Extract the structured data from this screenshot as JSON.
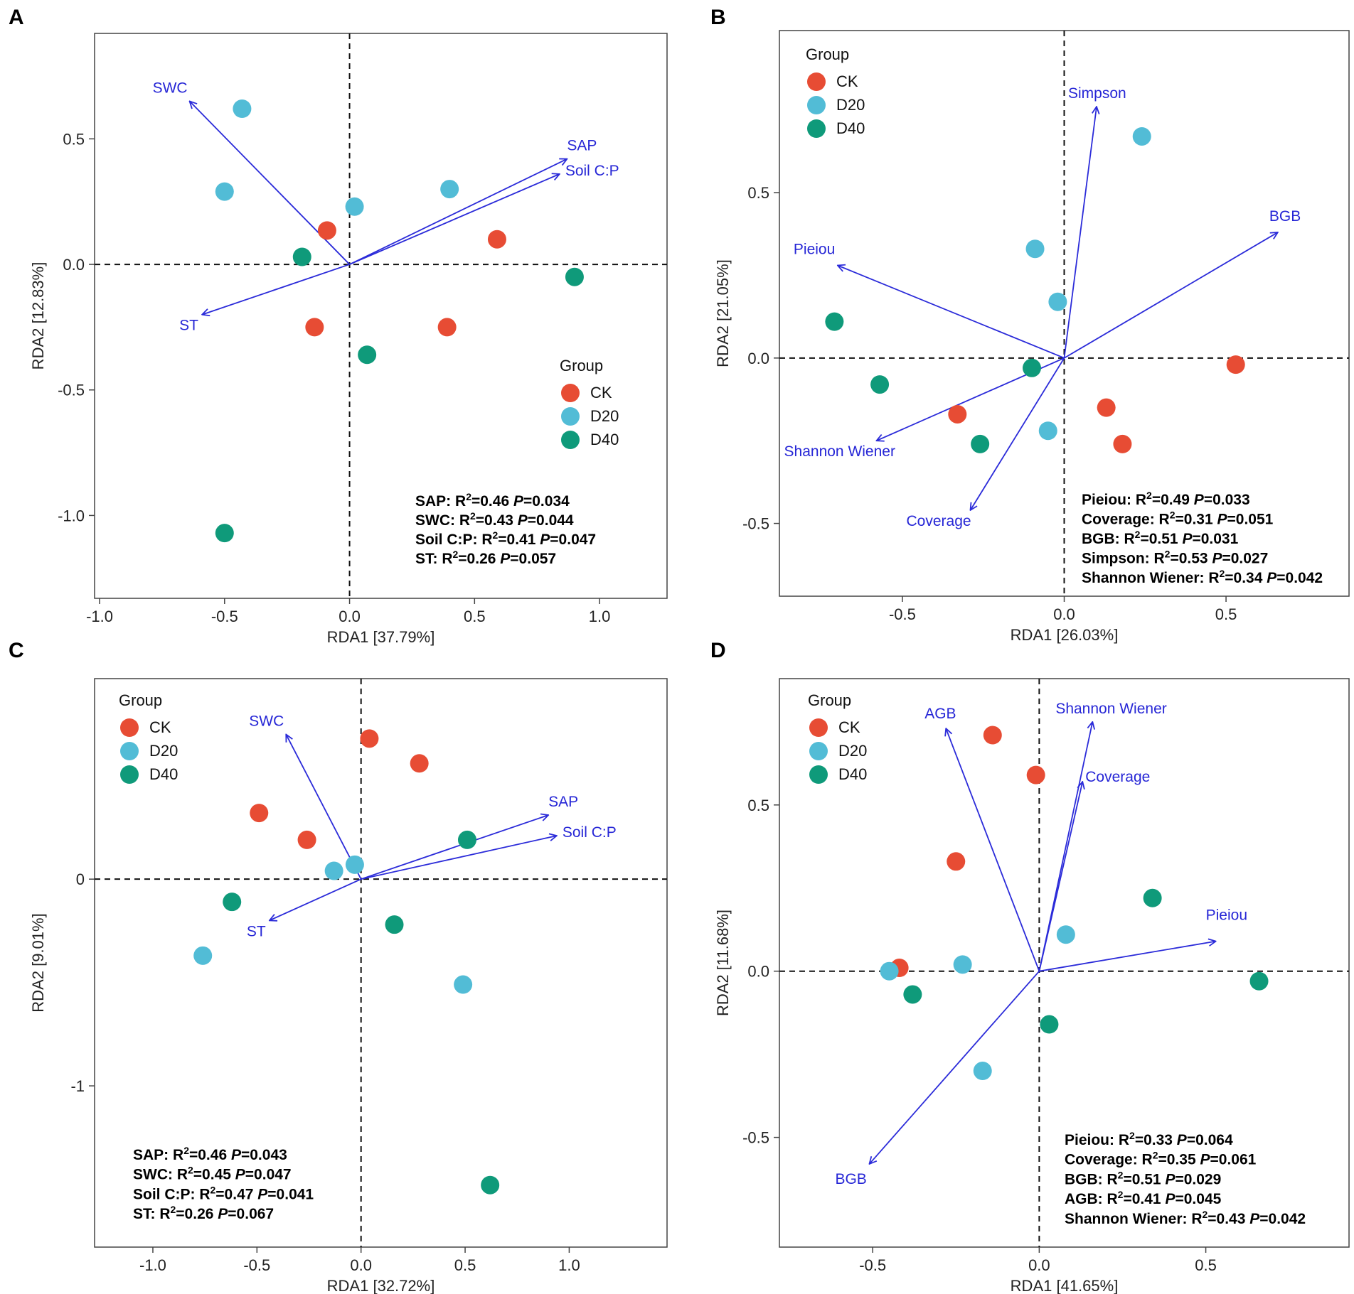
{
  "colors": {
    "CK": "#e74c34",
    "D20": "#52bcd6",
    "D40": "#0f9a7a",
    "arrow": "#2b2bd9",
    "axis": "#444444"
  },
  "legend_title": "Group",
  "chart_data": [
    {
      "panel": "A",
      "type": "scatter",
      "xlabel": "RDA1 [37.79%]",
      "ylabel": "RDA2 [12.83%]",
      "xlim": [
        -1.02,
        1.27
      ],
      "ylim": [
        -1.33,
        0.92
      ],
      "xticks": [
        -1.0,
        -0.5,
        0.0,
        0.5,
        1.0
      ],
      "xtick_labels": [
        "-1.0",
        "-0.5",
        "0.0",
        "0.5",
        "1.0"
      ],
      "yticks": [
        -1.0,
        -0.5,
        0.0,
        0.5
      ],
      "ytick_labels": [
        "-1.0",
        "-0.5",
        "0.0",
        "0.5"
      ],
      "legend_pos": "middle-right",
      "stats_pos": "bottom-right",
      "series": [
        {
          "name": "CK",
          "points": [
            [
              -0.09,
              0.135
            ],
            [
              0.59,
              0.1
            ],
            [
              -0.14,
              -0.25
            ],
            [
              0.39,
              -0.25
            ]
          ]
        },
        {
          "name": "D20",
          "points": [
            [
              -0.43,
              0.62
            ],
            [
              -0.5,
              0.29
            ],
            [
              0.02,
              0.23
            ],
            [
              0.4,
              0.3
            ]
          ]
        },
        {
          "name": "D40",
          "points": [
            [
              -0.19,
              0.03
            ],
            [
              0.9,
              -0.05
            ],
            [
              0.07,
              -0.36
            ],
            [
              -0.5,
              -1.07
            ]
          ]
        }
      ],
      "vectors": [
        {
          "label": "SWC",
          "x": -0.64,
          "y": 0.65
        },
        {
          "label": "SAP",
          "x": 0.87,
          "y": 0.42
        },
        {
          "label": "Soil C:P",
          "x": 0.84,
          "y": 0.36
        },
        {
          "label": "ST",
          "x": -0.59,
          "y": -0.2
        }
      ],
      "stats": [
        {
          "name": "SAP",
          "r2": "=0.46",
          "p": "=0.034"
        },
        {
          "name": "SWC",
          "r2": "=0.43",
          "p": "=0.044"
        },
        {
          "name": "Soil C:P",
          "r2": "=0.41",
          "p": "=0.047"
        },
        {
          "name": "ST",
          "r2": "=0.26",
          "p": "=0.057"
        }
      ]
    },
    {
      "panel": "B",
      "type": "scatter",
      "xlabel": "RDA1 [26.03%]",
      "ylabel": "RDA2 [21.05%]",
      "xlim": [
        -0.88,
        0.88
      ],
      "ylim": [
        -0.72,
        0.99
      ],
      "xticks": [
        -0.5,
        0.0,
        0.5
      ],
      "xtick_labels": [
        "-0.5",
        "0.0",
        "0.5"
      ],
      "yticks": [
        -0.5,
        0.0,
        0.5
      ],
      "ytick_labels": [
        "-0.5",
        "0.0",
        "0.5"
      ],
      "legend_pos": "top-left",
      "stats_pos": "bottom-right",
      "series": [
        {
          "name": "CK",
          "points": [
            [
              0.53,
              -0.02
            ],
            [
              0.13,
              -0.15
            ],
            [
              0.18,
              -0.26
            ],
            [
              -0.33,
              -0.17
            ]
          ]
        },
        {
          "name": "D20",
          "points": [
            [
              0.24,
              0.67
            ],
            [
              -0.09,
              0.33
            ],
            [
              -0.02,
              0.17
            ],
            [
              -0.05,
              -0.22
            ]
          ]
        },
        {
          "name": "D40",
          "points": [
            [
              -0.71,
              0.11
            ],
            [
              -0.57,
              -0.08
            ],
            [
              -0.26,
              -0.26
            ],
            [
              -0.1,
              -0.03
            ]
          ]
        }
      ],
      "vectors": [
        {
          "label": "Simpson",
          "x": 0.1,
          "y": 0.76
        },
        {
          "label": "BGB",
          "x": 0.66,
          "y": 0.38
        },
        {
          "label": "Pieiou",
          "x": -0.7,
          "y": 0.28
        },
        {
          "label": "Shannon Wiener",
          "x": -0.58,
          "y": -0.25
        },
        {
          "label": "Coverage",
          "x": -0.29,
          "y": -0.46
        }
      ],
      "stats": [
        {
          "name": "Pieiou",
          "r2": "=0.49",
          "p": "=0.033"
        },
        {
          "name": "Coverage",
          "r2": "=0.31",
          "p": "=0.051"
        },
        {
          "name": "BGB",
          "r2": "=0.51",
          "p": "=0.031"
        },
        {
          "name": "Simpson",
          "r2": "=0.53",
          "p": "=0.027"
        },
        {
          "name": "Shannon Wiener",
          "r2": "=0.34",
          "p": "=0.042"
        }
      ]
    },
    {
      "panel": "C",
      "type": "scatter",
      "xlabel": "RDA1 [32.72%]",
      "ylabel": "RDA2 [9.01%]",
      "xlim": [
        -1.28,
        1.47
      ],
      "ylim": [
        -1.78,
        0.97
      ],
      "xticks": [
        -1.0,
        -0.5,
        0.0,
        0.5,
        1.0
      ],
      "xtick_labels": [
        "-1.0",
        "-0.5",
        "0.0",
        "0.5",
        "1.0"
      ],
      "yticks": [
        -1,
        0
      ],
      "ytick_labels": [
        "-1",
        "0"
      ],
      "legend_pos": "top-left",
      "stats_pos": "bottom-left",
      "series": [
        {
          "name": "CK",
          "points": [
            [
              0.04,
              0.68
            ],
            [
              0.28,
              0.56
            ],
            [
              -0.49,
              0.32
            ],
            [
              -0.26,
              0.19
            ]
          ]
        },
        {
          "name": "D20",
          "points": [
            [
              -0.13,
              0.04
            ],
            [
              -0.03,
              0.07
            ],
            [
              -0.76,
              -0.37
            ],
            [
              0.49,
              -0.51
            ]
          ]
        },
        {
          "name": "D40",
          "points": [
            [
              0.51,
              0.19
            ],
            [
              -0.62,
              -0.11
            ],
            [
              0.16,
              -0.22
            ],
            [
              0.62,
              -1.48
            ]
          ]
        }
      ],
      "vectors": [
        {
          "label": "SWC",
          "x": -0.36,
          "y": 0.7
        },
        {
          "label": "SAP",
          "x": 0.9,
          "y": 0.31
        },
        {
          "label": "Soil C:P",
          "x": 0.94,
          "y": 0.21
        },
        {
          "label": "ST",
          "x": -0.44,
          "y": -0.2
        }
      ],
      "stats": [
        {
          "name": "SAP",
          "r2": "=0.46",
          "p": "=0.043"
        },
        {
          "name": "SWC",
          "r2": "=0.45",
          "p": "=0.047"
        },
        {
          "name": "Soil C:P",
          "r2": "=0.47",
          "p": "=0.041"
        },
        {
          "name": "ST",
          "r2": "=0.26",
          "p": "=0.067"
        }
      ]
    },
    {
      "panel": "D",
      "type": "scatter",
      "xlabel": "RDA1 [41.65%]",
      "ylabel": "RDA2 [11.68%]",
      "xlim": [
        -0.78,
        0.93
      ],
      "ylim": [
        -0.83,
        0.88
      ],
      "xticks": [
        -0.5,
        0.0,
        0.5
      ],
      "xtick_labels": [
        "-0.5",
        "0.0",
        "0.5"
      ],
      "yticks": [
        -0.5,
        0.0,
        0.5
      ],
      "ytick_labels": [
        "-0.5",
        "0.0",
        "0.5"
      ],
      "legend_pos": "top-left",
      "stats_pos": "bottom-right",
      "series": [
        {
          "name": "CK",
          "points": [
            [
              -0.14,
              0.71
            ],
            [
              -0.01,
              0.59
            ],
            [
              -0.25,
              0.33
            ],
            [
              -0.42,
              0.01
            ]
          ]
        },
        {
          "name": "D20",
          "points": [
            [
              0.08,
              0.11
            ],
            [
              -0.23,
              0.02
            ],
            [
              -0.45,
              0.0
            ],
            [
              -0.17,
              -0.3
            ]
          ]
        },
        {
          "name": "D40",
          "points": [
            [
              0.34,
              0.22
            ],
            [
              0.66,
              -0.03
            ],
            [
              -0.38,
              -0.07
            ],
            [
              0.03,
              -0.16
            ]
          ]
        }
      ],
      "vectors": [
        {
          "label": "AGB",
          "x": -0.28,
          "y": 0.73
        },
        {
          "label": "Shannon Wiener",
          "x": 0.16,
          "y": 0.75
        },
        {
          "label": "Coverage",
          "x": 0.13,
          "y": 0.57
        },
        {
          "label": "Pieiou",
          "x": 0.53,
          "y": 0.09
        },
        {
          "label": "BGB",
          "x": -0.51,
          "y": -0.58
        }
      ],
      "stats": [
        {
          "name": "Pieiou",
          "r2": "=0.33",
          "p": "=0.064"
        },
        {
          "name": "Coverage",
          "r2": "=0.35",
          "p": "=0.061"
        },
        {
          "name": "BGB",
          "r2": "=0.51",
          "p": "=0.029"
        },
        {
          "name": "AGB",
          "r2": "=0.41",
          "p": "=0.045"
        },
        {
          "name": "Shannon Wiener",
          "r2": "=0.43",
          "p": "=0.042"
        }
      ]
    }
  ]
}
